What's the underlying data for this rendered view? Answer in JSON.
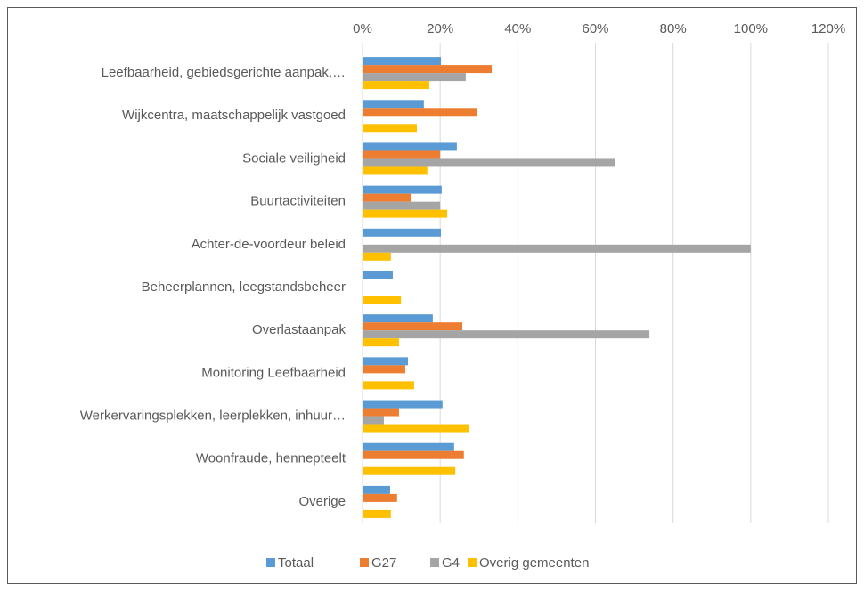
{
  "chart_data": {
    "type": "bar",
    "orientation": "horizontal",
    "categories": [
      "Leefbaarheid, gebiedsgerichte aanpak,…",
      "Wijkcentra, maatschappelijk vastgoed",
      "Sociale veiligheid",
      "Buurtactiviteiten",
      "Achter-de-voordeur beleid",
      "Beheerplannen, leegstandsbeheer",
      "Overlastaanpak",
      "Monitoring Leefbaarheid",
      "Werkervaringsplekken, leerplekken, inhuur…",
      "Woonfraude, hennepteelt",
      "Overige"
    ],
    "series": [
      {
        "name": "Totaal",
        "color": "#5b9bd5",
        "values": [
          20.2,
          15.8,
          24.3,
          20.4,
          20.2,
          7.8,
          18.1,
          11.7,
          20.6,
          23.6,
          7.1
        ]
      },
      {
        "name": "G27",
        "color": "#ed7d31",
        "values": [
          33.3,
          29.6,
          20,
          12.4,
          0,
          0,
          25.7,
          11,
          9.4,
          26.1,
          8.9
        ]
      },
      {
        "name": "G4",
        "color": "#a5a5a5",
        "values": [
          26.6,
          0,
          65.1,
          20,
          100,
          0,
          73.9,
          0,
          5.5,
          0,
          0
        ]
      },
      {
        "name": "Overig gemeenten",
        "color": "#ffc000",
        "values": [
          17.2,
          14,
          16.7,
          21.8,
          7.3,
          9.9,
          9.4,
          13.3,
          27.5,
          23.9,
          7.3
        ]
      }
    ],
    "xlim": [
      0,
      120
    ],
    "xticks": [
      {
        "value": 0,
        "label": "0%"
      },
      {
        "value": 20,
        "label": "20%"
      },
      {
        "value": 40,
        "label": "40%"
      },
      {
        "value": 60,
        "label": "60%"
      },
      {
        "value": 80,
        "label": "80%"
      },
      {
        "value": 100,
        "label": "100%"
      },
      {
        "value": 120,
        "label": "120%"
      }
    ],
    "grid": true,
    "legend": "bottom"
  }
}
